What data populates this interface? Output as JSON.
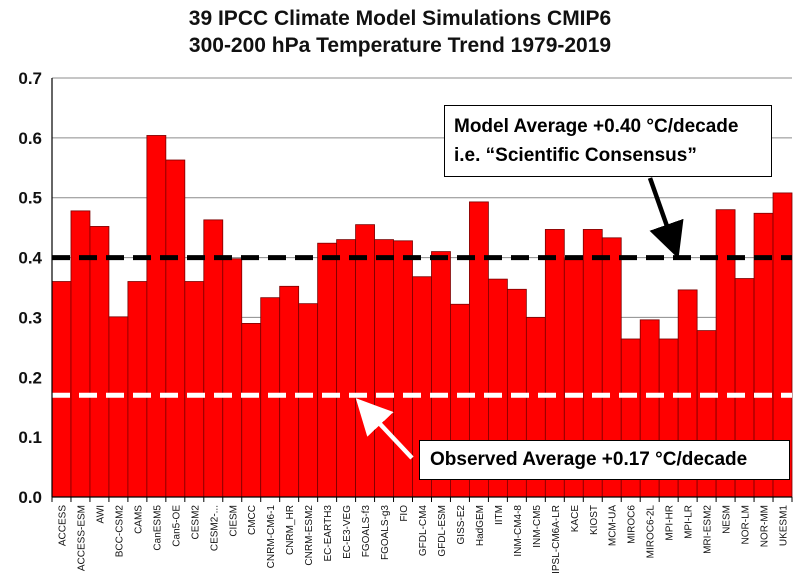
{
  "chart_data": {
    "type": "bar",
    "title": "39 IPCC Climate Model Simulations CMIP6",
    "subtitle": "300-200 hPa Temperature Trend 1979-2019",
    "xlabel": "",
    "ylabel": "",
    "ylim": [
      0,
      0.7
    ],
    "yticks": [
      "0.0",
      "0.1",
      "0.2",
      "0.3",
      "0.4",
      "0.5",
      "0.6",
      "0.7"
    ],
    "grid": "horizontal",
    "bar_color": "#ff0000",
    "categories": [
      "ACCESS",
      "ACCESS-ESM",
      "AWI",
      "BCC-CSM2",
      "CAMS",
      "CanESM5",
      "Can5-OE",
      "CESM2",
      "CESM2-...",
      "CIESM",
      "CMCC",
      "CNRM-CM6-1",
      "CNRM_HR",
      "CNRM-ESM2",
      "EC-EARTH3",
      "EC-E3-VEG",
      "FGOALS-f3",
      "FGOALS-g3",
      "FIO",
      "GFDL-CM4",
      "GFDL-ESM",
      "GISS-E2",
      "HadGEM",
      "IITM",
      "INM-CM4-8",
      "INM-CM5",
      "IPSL-CM6A-LR",
      "KACE",
      "KIOST",
      "MCM-UA",
      "MIROC6",
      "MIROC6-2L",
      "MPI-HR",
      "MPI-LR",
      "MRI-ESM2",
      "NESM",
      "NOR-LM",
      "NOR-MM",
      "UKESM1"
    ],
    "values": [
      0.36,
      0.478,
      0.452,
      0.301,
      0.36,
      0.604,
      0.563,
      0.36,
      0.463,
      0.398,
      0.29,
      0.333,
      0.352,
      0.323,
      0.424,
      0.43,
      0.455,
      0.43,
      0.428,
      0.368,
      0.41,
      0.322,
      0.493,
      0.364,
      0.347,
      0.3,
      0.447,
      0.398,
      0.447,
      0.433,
      0.264,
      0.296,
      0.264,
      0.346,
      0.278,
      0.48,
      0.365,
      0.474,
      0.508
    ],
    "reference_lines": [
      {
        "value": 0.4,
        "color": "#000000"
      },
      {
        "value": 0.17,
        "color": "#ffffff"
      }
    ],
    "annotations": {
      "model_line1": "Model Average +0.40 °C/decade",
      "model_line2": "i.e. “Scientific Consensus”",
      "observed": "Observed Average +0.17 °C/decade"
    }
  }
}
